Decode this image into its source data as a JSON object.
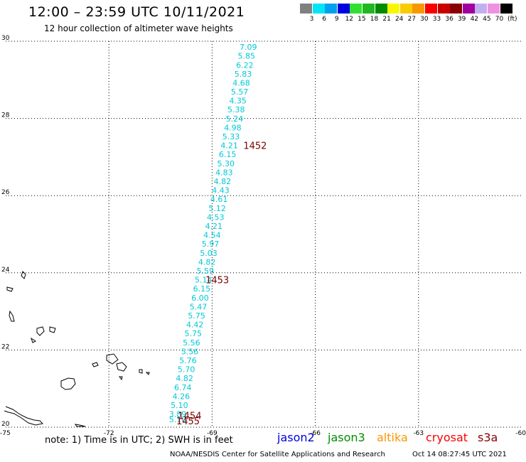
{
  "header": {
    "title": "12:00 – 23:59 UTC 10/11/2021",
    "subtitle": "12 hour collection of altimeter wave heights"
  },
  "legend": {
    "unit": "(ft)",
    "levels": [
      {
        "label": "3",
        "color": "#808080"
      },
      {
        "label": "6",
        "color": "#00e5f5"
      },
      {
        "label": "9",
        "color": "#00a0f0"
      },
      {
        "label": "12",
        "color": "#0000e0"
      },
      {
        "label": "15",
        "color": "#30e030"
      },
      {
        "label": "18",
        "color": "#20b820"
      },
      {
        "label": "21",
        "color": "#008c00"
      },
      {
        "label": "24",
        "color": "#f8f800"
      },
      {
        "label": "27",
        "color": "#f8cc00"
      },
      {
        "label": "30",
        "color": "#f89800"
      },
      {
        "label": "33",
        "color": "#f80000"
      },
      {
        "label": "36",
        "color": "#c80000"
      },
      {
        "label": "39",
        "color": "#880000"
      },
      {
        "label": "42",
        "color": "#a000a0"
      },
      {
        "label": "45",
        "color": "#c0b0f0"
      },
      {
        "label": "70",
        "color": "#f090e0"
      },
      {
        "label": "",
        "color": "#000000"
      }
    ]
  },
  "map": {
    "lon_range": [
      -75,
      -60
    ],
    "lat_range": [
      20,
      30
    ],
    "lon_labels": [
      "-75",
      "-72",
      "-69",
      "-66",
      "-63",
      "-60"
    ],
    "lat_labels": [
      "20",
      "22",
      "24",
      "26",
      "28",
      "30"
    ],
    "track_color": "#00c8d8",
    "time_color": "#7a0000",
    "wave_heights": [
      {
        "lat": 29.85,
        "lon": -67.95,
        "value": "7.09"
      },
      {
        "lat": 29.62,
        "lon": -68.0,
        "value": "5.85"
      },
      {
        "lat": 29.38,
        "lon": -68.05,
        "value": "6.22"
      },
      {
        "lat": 29.15,
        "lon": -68.1,
        "value": "5.83"
      },
      {
        "lat": 28.92,
        "lon": -68.15,
        "value": "4.68"
      },
      {
        "lat": 28.69,
        "lon": -68.2,
        "value": "5.57"
      },
      {
        "lat": 28.46,
        "lon": -68.25,
        "value": "4.35"
      },
      {
        "lat": 28.23,
        "lon": -68.3,
        "value": "5.38"
      },
      {
        "lat": 27.99,
        "lon": -68.35,
        "value": "5.24"
      },
      {
        "lat": 27.76,
        "lon": -68.4,
        "value": "4.98"
      },
      {
        "lat": 27.53,
        "lon": -68.45,
        "value": "5.33"
      },
      {
        "lat": 27.3,
        "lon": -68.5,
        "value": "4.21"
      },
      {
        "lat": 27.07,
        "lon": -68.55,
        "value": "6.15"
      },
      {
        "lat": 26.83,
        "lon": -68.6,
        "value": "5.30"
      },
      {
        "lat": 26.6,
        "lon": -68.65,
        "value": "4.83"
      },
      {
        "lat": 26.37,
        "lon": -68.7,
        "value": "4.82"
      },
      {
        "lat": 26.14,
        "lon": -68.75,
        "value": "4.43"
      },
      {
        "lat": 25.91,
        "lon": -68.8,
        "value": "4.61"
      },
      {
        "lat": 25.67,
        "lon": -68.85,
        "value": "5.12"
      },
      {
        "lat": 25.44,
        "lon": -68.9,
        "value": "4.53"
      },
      {
        "lat": 25.21,
        "lon": -68.95,
        "value": "4.21"
      },
      {
        "lat": 24.98,
        "lon": -69.0,
        "value": "4.54"
      },
      {
        "lat": 24.75,
        "lon": -69.05,
        "value": "5.97"
      },
      {
        "lat": 24.51,
        "lon": -69.1,
        "value": "5.03"
      },
      {
        "lat": 24.28,
        "lon": -69.15,
        "value": "4.82"
      },
      {
        "lat": 24.05,
        "lon": -69.2,
        "value": "5.59"
      },
      {
        "lat": 23.82,
        "lon": -69.25,
        "value": "5.14"
      },
      {
        "lat": 23.59,
        "lon": -69.3,
        "value": "6.15"
      },
      {
        "lat": 23.35,
        "lon": -69.35,
        "value": "6.00"
      },
      {
        "lat": 23.12,
        "lon": -69.4,
        "value": "5.47"
      },
      {
        "lat": 22.89,
        "lon": -69.45,
        "value": "5.75"
      },
      {
        "lat": 22.66,
        "lon": -69.5,
        "value": "4.42"
      },
      {
        "lat": 22.43,
        "lon": -69.55,
        "value": "5.75"
      },
      {
        "lat": 22.19,
        "lon": -69.6,
        "value": "5.56"
      },
      {
        "lat": 21.96,
        "lon": -69.65,
        "value": "5.56"
      },
      {
        "lat": 21.73,
        "lon": -69.7,
        "value": "5.76"
      },
      {
        "lat": 21.5,
        "lon": -69.75,
        "value": "5.70"
      },
      {
        "lat": 21.27,
        "lon": -69.8,
        "value": "4.82"
      },
      {
        "lat": 21.03,
        "lon": -69.85,
        "value": "6.74"
      },
      {
        "lat": 20.8,
        "lon": -69.9,
        "value": "4.26"
      },
      {
        "lat": 20.57,
        "lon": -69.95,
        "value": "5.10"
      },
      {
        "lat": 20.34,
        "lon": -70.0,
        "value": "3.89"
      },
      {
        "lat": 20.2,
        "lon": -70.0,
        "value": "5.10"
      }
    ],
    "time_labels": [
      {
        "lat": 27.3,
        "lon": -67.75,
        "value": "1452"
      },
      {
        "lat": 23.82,
        "lon": -68.85,
        "value": "1453"
      },
      {
        "lat": 20.3,
        "lon": -69.65,
        "value": "1454"
      },
      {
        "lat": 20.17,
        "lon": -69.7,
        "value": "1455"
      }
    ]
  },
  "footer": {
    "note": "note: 1) Time is in UTC; 2) SWH is in feet",
    "satellites": [
      {
        "name": "jason2",
        "color": "#0000e0"
      },
      {
        "name": "jason3",
        "color": "#008c00"
      },
      {
        "name": "altika",
        "color": "#f89800"
      },
      {
        "name": "cryosat",
        "color": "#f80000"
      },
      {
        "name": "s3a",
        "color": "#880000"
      }
    ],
    "credit": "NOAA/NESDIS Center for Satellite Applications and Research",
    "timestamp": "Oct 14 08:27:45 UTC 2021"
  }
}
